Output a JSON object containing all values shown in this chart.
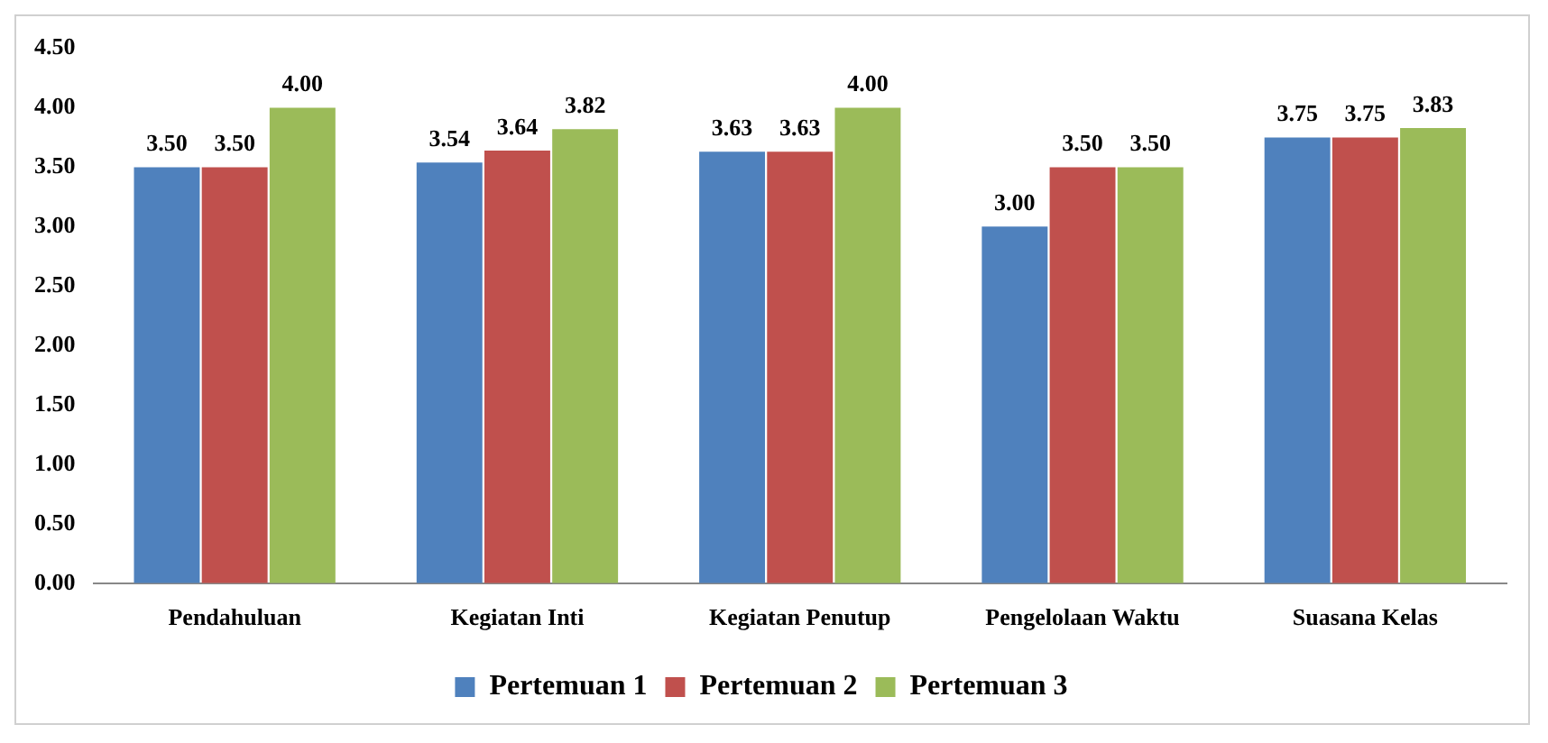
{
  "chart_data": {
    "type": "bar",
    "categories": [
      "Pendahuluan",
      "Kegiatan Inti",
      "Kegiatan Penutup",
      "Pengelolaan Waktu",
      "Suasana Kelas"
    ],
    "series": [
      {
        "name": "Pertemuan 1",
        "color": "#4f81bd",
        "values": [
          3.5,
          3.54,
          3.63,
          3.0,
          3.75
        ],
        "value_labels": [
          "3.50",
          "3.54",
          "3.63",
          "3.00",
          "3.75"
        ]
      },
      {
        "name": "Pertemuan 2",
        "color": "#c0504d",
        "values": [
          3.5,
          3.64,
          3.63,
          3.5,
          3.75
        ],
        "value_labels": [
          "3.50",
          "3.64",
          "3.63",
          "3.50",
          "3.75"
        ]
      },
      {
        "name": "Pertemuan 3",
        "color": "#9bbb59",
        "values": [
          4.0,
          3.82,
          4.0,
          3.5,
          3.83
        ],
        "value_labels": [
          "4.00",
          "3.82",
          "4.00",
          "3.50",
          "3.83"
        ]
      }
    ],
    "ylim": [
      0,
      4.5
    ],
    "yticks": [
      {
        "value": 0,
        "label": "0.00"
      },
      {
        "value": 0.5,
        "label": "0.50"
      },
      {
        "value": 1,
        "label": "1.00"
      },
      {
        "value": 1.5,
        "label": "1.50"
      },
      {
        "value": 2,
        "label": "2.00"
      },
      {
        "value": 2.5,
        "label": "2.50"
      },
      {
        "value": 3,
        "label": "3.00"
      },
      {
        "value": 3.5,
        "label": "3.50"
      },
      {
        "value": 4,
        "label": "4.00"
      },
      {
        "value": 4.5,
        "label": "4.50"
      }
    ],
    "grid": false,
    "legend": "bottom"
  }
}
